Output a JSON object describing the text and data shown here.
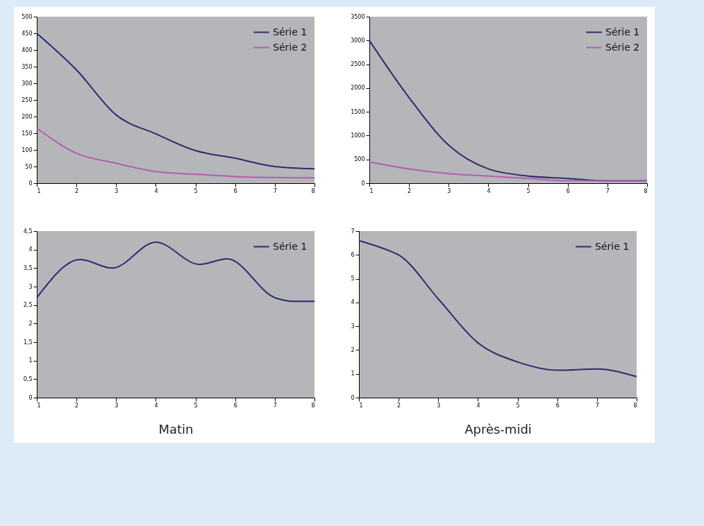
{
  "chart_data": [
    {
      "type": "line",
      "x": [
        1,
        2,
        3,
        4,
        5,
        6,
        7,
        8
      ],
      "xlim": [
        1,
        8
      ],
      "xticks": [
        1,
        2,
        3,
        4,
        5,
        6,
        7,
        8
      ],
      "ylim": [
        0,
        500
      ],
      "yticks": [
        0,
        50,
        100,
        150,
        200,
        250,
        300,
        350,
        400,
        450,
        500
      ],
      "legend": "top right",
      "grid": false,
      "series": [
        {
          "name": "Série 1",
          "color": "#2e2a6e",
          "values": [
            450,
            340,
            205,
            148,
            98,
            75,
            50,
            43
          ]
        },
        {
          "name": "Série 2",
          "color": "#b55cb0",
          "values": [
            165,
            90,
            60,
            35,
            27,
            20,
            17,
            16
          ]
        }
      ]
    },
    {
      "type": "line",
      "x": [
        1,
        2,
        3,
        4,
        5,
        6,
        7,
        8
      ],
      "xlim": [
        1,
        8
      ],
      "xticks": [
        1,
        2,
        3,
        4,
        5,
        6,
        7,
        8
      ],
      "ylim": [
        0,
        3500
      ],
      "yticks": [
        0,
        500,
        1000,
        1500,
        2000,
        2500,
        3000,
        3500
      ],
      "legend": "top right",
      "grid": false,
      "series": [
        {
          "name": "Série 1",
          "color": "#2e2a6e",
          "values": [
            3000,
            1800,
            800,
            300,
            150,
            100,
            50,
            50
          ]
        },
        {
          "name": "Série 2",
          "color": "#b55cb0",
          "values": [
            450,
            300,
            200,
            150,
            100,
            50,
            50,
            50
          ]
        }
      ]
    },
    {
      "type": "line",
      "xlabel": "Matin",
      "xlim": [
        1,
        8
      ],
      "xticks": [
        1,
        2,
        3,
        4,
        5,
        6,
        7,
        8
      ],
      "ylim": [
        0,
        4.5
      ],
      "yticks": [
        0,
        {
          "value": 0.5,
          "label": "0,5"
        },
        1,
        {
          "value": 1.5,
          "label": "1,5"
        },
        2,
        {
          "value": 2.5,
          "label": "2,5"
        },
        3,
        {
          "value": 3.5,
          "label": "3,5"
        },
        4,
        {
          "value": 4.5,
          "label": "4,5"
        }
      ],
      "legend": "top right",
      "grid": false,
      "series": [
        {
          "name": "Série 1",
          "color": "#2e2a6e",
          "x": [
            1,
            2.1,
            2.9,
            4,
            5.1,
            5.8,
            7,
            7.5,
            8
          ],
          "values": [
            2.7,
            3.73,
            3.5,
            4.2,
            3.6,
            3.75,
            2.7,
            2.6,
            2.6
          ]
        }
      ]
    },
    {
      "type": "line",
      "xlabel": "Après-midi",
      "xlim": [
        1,
        8
      ],
      "xticks": [
        1,
        2,
        3,
        4,
        5,
        6,
        7,
        8
      ],
      "ylim": [
        0,
        7
      ],
      "yticks": [
        0,
        1,
        2,
        3,
        4,
        5,
        6,
        7
      ],
      "legend": "top right",
      "grid": false,
      "series": [
        {
          "name": "Série 1",
          "color": "#2e2a6e",
          "x": [
            1,
            1.8,
            2,
            3,
            4,
            5,
            6,
            7,
            8
          ],
          "values": [
            6.6,
            6.15,
            6.0,
            4.15,
            2.3,
            1.5,
            1.15,
            1.2,
            0.88
          ]
        }
      ]
    }
  ]
}
